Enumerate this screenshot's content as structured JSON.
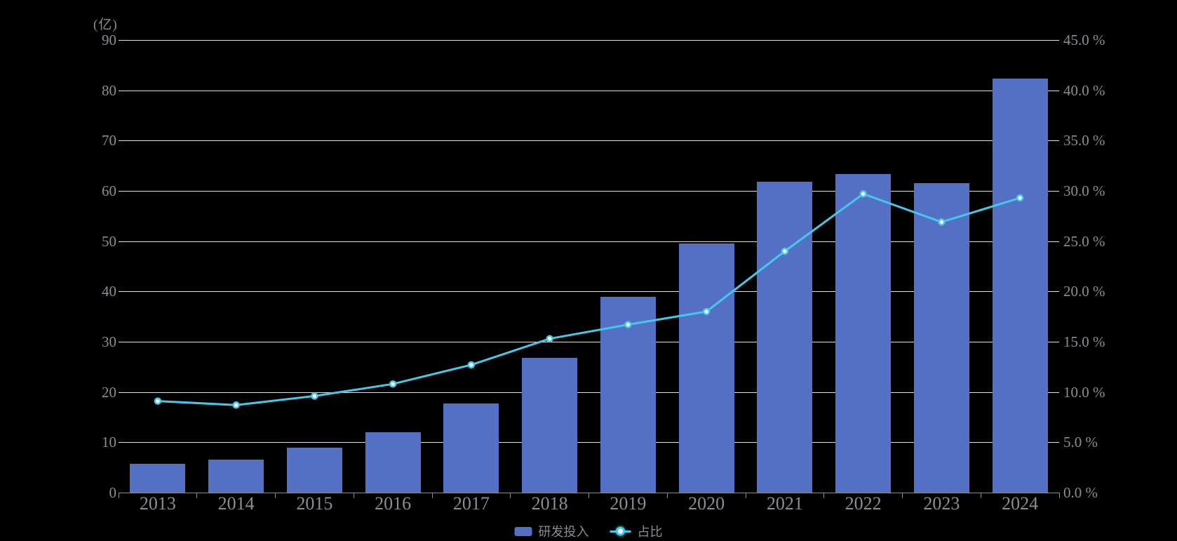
{
  "chart_data": {
    "type": "bar",
    "combo": "bar + line, dual y-axis",
    "categories": [
      "2013",
      "2014",
      "2015",
      "2016",
      "2017",
      "2018",
      "2019",
      "2020",
      "2021",
      "2022",
      "2023",
      "2024"
    ],
    "series": [
      {
        "name": "研发投入",
        "type": "bar",
        "axis": "left",
        "color": "#5470c4",
        "values": [
          5.7,
          6.6,
          9.0,
          12.0,
          17.7,
          26.8,
          39.0,
          49.6,
          61.8,
          63.3,
          61.5,
          82.3
        ]
      },
      {
        "name": "占比",
        "type": "line",
        "axis": "right",
        "color": "#45c8e8",
        "marker_fill": "#ffffff",
        "values": [
          9.1,
          8.7,
          9.6,
          10.8,
          12.7,
          15.3,
          16.7,
          18.0,
          24.0,
          29.7,
          26.9,
          29.3
        ]
      }
    ],
    "left_axis": {
      "unit_label": "(亿)",
      "min": 0,
      "max": 90,
      "step": 10,
      "tick_labels": [
        "0",
        "10",
        "20",
        "30",
        "40",
        "50",
        "60",
        "70",
        "80",
        "90"
      ]
    },
    "right_axis": {
      "min": 0,
      "max": 45,
      "step": 5,
      "tick_labels": [
        "0.0 %",
        "5.0 %",
        "10.0 %",
        "15.0 %",
        "20.0 %",
        "25.0 %",
        "30.0 %",
        "35.0 %",
        "40.0 %",
        "45.0 %"
      ]
    },
    "legend": {
      "position": "bottom-center",
      "items": [
        {
          "label": "研发投入",
          "marker": "bar-swatch"
        },
        {
          "label": "占比",
          "marker": "line-dot"
        }
      ]
    },
    "grid": true,
    "background": "#000000",
    "text_color": "#8c8c94",
    "gridline_color": "#e2e2e6",
    "axis_color": "#8b8b93",
    "title": ""
  }
}
